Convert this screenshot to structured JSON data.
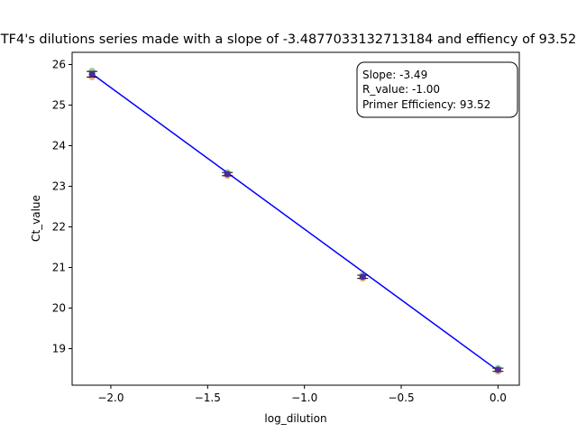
{
  "chart_data": {
    "type": "scatter",
    "title": "TF4's dilutions series  made with a slope of -3.4877033132713184 and effiency of 93.52",
    "xlabel": "log_dilution",
    "ylabel": "Ct_value",
    "xlim": [
      -2.2,
      0.11
    ],
    "ylim": [
      18.1,
      26.3
    ],
    "xticks": [
      -2.0,
      -1.5,
      -1.0,
      -0.5,
      0.0
    ],
    "xtick_labels": [
      "−2.0",
      "−1.5",
      "−1.0",
      "−0.5",
      "0.0"
    ],
    "yticks": [
      19,
      20,
      21,
      22,
      23,
      24,
      25,
      26
    ],
    "ytick_labels": [
      "19",
      "20",
      "21",
      "22",
      "23",
      "24",
      "25",
      "26"
    ],
    "grid": false,
    "replicates": [
      {
        "x": -2.097,
        "y": 25.83,
        "color": "#8fbf8f"
      },
      {
        "x": -2.097,
        "y": 25.7,
        "color": "#e8a46a"
      },
      {
        "x": -1.398,
        "y": 23.33,
        "color": "#8fbf8f"
      },
      {
        "x": -1.398,
        "y": 23.27,
        "color": "#e8a46a"
      },
      {
        "x": -0.699,
        "y": 20.8,
        "color": "#8fbf8f"
      },
      {
        "x": -0.699,
        "y": 20.74,
        "color": "#e8a46a"
      },
      {
        "x": 0.0,
        "y": 18.51,
        "color": "#8fbf8f"
      },
      {
        "x": 0.0,
        "y": 18.45,
        "color": "#e8a46a"
      }
    ],
    "means": [
      {
        "x": -2.097,
        "y": 25.76,
        "err": 0.07
      },
      {
        "x": -1.398,
        "y": 23.3,
        "err": 0.04
      },
      {
        "x": -0.699,
        "y": 20.77,
        "err": 0.04
      },
      {
        "x": 0.0,
        "y": 18.48,
        "err": 0.04
      }
    ],
    "fit_line": {
      "x": [
        -2.097,
        0.0
      ],
      "y": [
        25.77,
        18.46
      ],
      "color": "#0000ff"
    },
    "annotation": {
      "lines": [
        "Slope: -3.49",
        "R_value: -1.00",
        "Primer Efficiency: 93.52"
      ],
      "placement": "top-right"
    },
    "colors": {
      "mean_marker": "#4b2a9e",
      "error_bar": "#000000",
      "fit": "#0000ff"
    }
  }
}
